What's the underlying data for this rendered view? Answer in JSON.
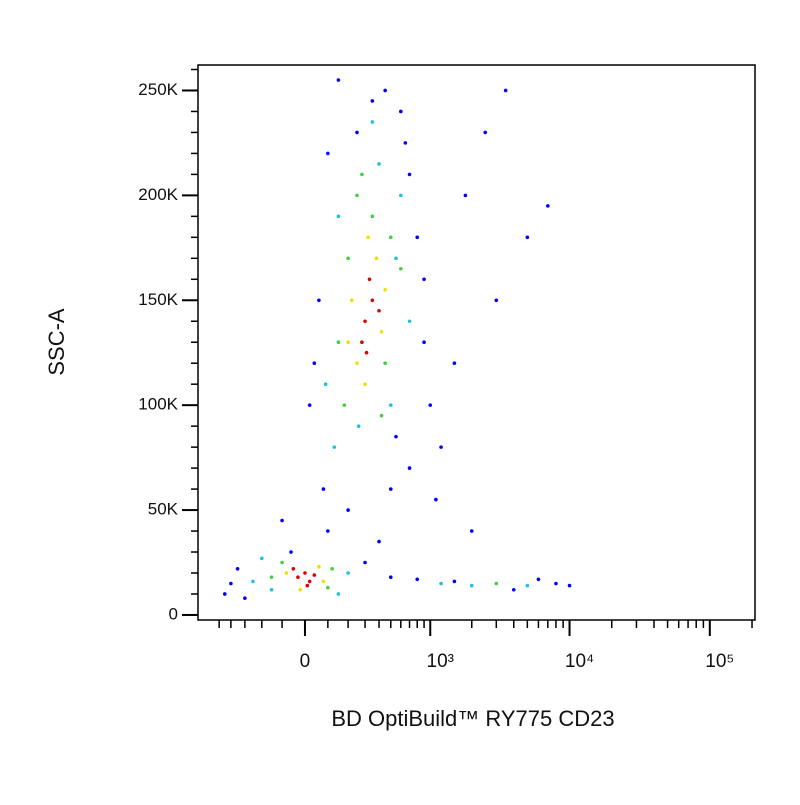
{
  "chart_data": {
    "type": "scatter",
    "x_label": "BD OptiBuild™ RY775 CD23",
    "y_label": "SSC-A",
    "xscale": "biexponential",
    "xlim": [
      -730,
      210000
    ],
    "ylim": [
      -2400,
      262144
    ],
    "xticks": [
      0,
      {
        "value": 1000,
        "label": "10³"
      },
      {
        "value": 10000,
        "label": "10⁴"
      },
      {
        "value": 100000,
        "label": "10⁵"
      }
    ],
    "xminorticks": [
      -500,
      -400,
      -300,
      -200,
      -100,
      100,
      200,
      300,
      400,
      500,
      600,
      700,
      800,
      900,
      2000,
      3000,
      4000,
      5000,
      6000,
      7000,
      8000,
      9000,
      20000,
      30000,
      40000,
      50000,
      60000,
      70000,
      80000,
      90000,
      200000
    ],
    "yticks": [
      0,
      {
        "value": 50000,
        "label": "50K"
      },
      {
        "value": 100000,
        "label": "100K"
      },
      {
        "value": 150000,
        "label": "150K"
      },
      {
        "value": 200000,
        "label": "200K"
      },
      {
        "value": 250000,
        "label": "250K"
      }
    ],
    "yminorticks": [
      10000,
      20000,
      30000,
      40000,
      60000,
      70000,
      80000,
      90000,
      110000,
      120000,
      130000,
      140000,
      160000,
      170000,
      180000,
      190000,
      210000,
      220000,
      230000,
      240000,
      260000
    ],
    "series": [
      {
        "color": "#0000ff",
        "x": [
          -400,
          -350,
          300,
          500,
          800,
          1500,
          4000,
          8000,
          10000,
          6000,
          250,
          450,
          600,
          100,
          700,
          800,
          60,
          40,
          900,
          80,
          200,
          500,
          700,
          1000,
          1500,
          3000,
          5000,
          2500,
          7000,
          1200,
          2000,
          400,
          100,
          -100,
          1800,
          3500,
          -450,
          -300,
          350,
          150,
          650,
          20,
          -60,
          550,
          900,
          1100
        ],
        "values": [
          15000,
          22000,
          25000,
          18000,
          17000,
          16000,
          12000,
          15000,
          14000,
          17000,
          230000,
          250000,
          240000,
          220000,
          210000,
          180000,
          150000,
          120000,
          160000,
          60000,
          50000,
          60000,
          70000,
          100000,
          120000,
          150000,
          180000,
          230000,
          195000,
          80000,
          40000,
          35000,
          40000,
          45000,
          200000,
          250000,
          10000,
          8000,
          245000,
          255000,
          225000,
          100000,
          30000,
          85000,
          130000,
          55000
        ]
      },
      {
        "color": "#20c0e0",
        "x": [
          -250,
          200,
          -200,
          150,
          130,
          600,
          400,
          150,
          700,
          260,
          500,
          2000,
          5000,
          1200,
          350,
          90,
          550,
          -150
        ],
        "values": [
          16000,
          20000,
          27000,
          10000,
          80000,
          200000,
          215000,
          190000,
          140000,
          90000,
          100000,
          14000,
          14000,
          15000,
          235000,
          110000,
          170000,
          12000
        ]
      },
      {
        "color": "#40d040",
        "x": [
          -150,
          120,
          100,
          -100,
          180,
          500,
          350,
          200,
          450,
          600,
          250,
          3000,
          280,
          150,
          420
        ],
        "values": [
          18000,
          22000,
          13000,
          25000,
          100000,
          180000,
          190000,
          170000,
          120000,
          165000,
          200000,
          15000,
          210000,
          130000,
          95000
        ]
      },
      {
        "color": "#f0e000",
        "x": [
          -80,
          60,
          -20,
          80,
          250,
          450,
          380,
          220,
          300,
          420,
          320,
          200
        ],
        "values": [
          20000,
          23000,
          12000,
          16000,
          120000,
          155000,
          170000,
          150000,
          110000,
          135000,
          180000,
          130000
        ]
      },
      {
        "color": "#e00000",
        "x": [
          -30,
          0,
          20,
          -50,
          40,
          10,
          300,
          350,
          280,
          400,
          330,
          310
        ],
        "values": [
          18000,
          20000,
          16000,
          22000,
          19000,
          14000,
          140000,
          150000,
          130000,
          145000,
          160000,
          125000
        ]
      }
    ]
  }
}
